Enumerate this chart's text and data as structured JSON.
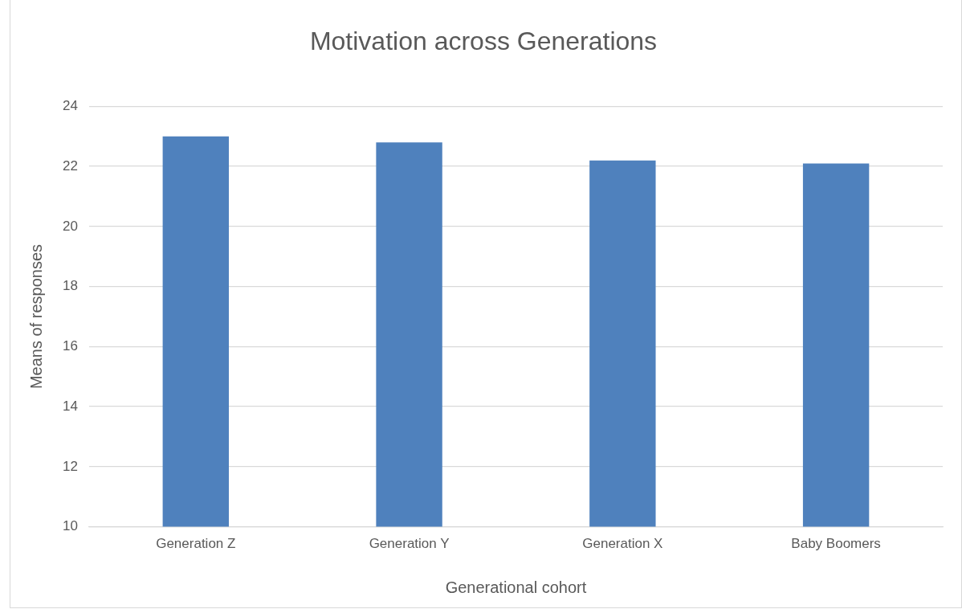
{
  "chart_data": {
    "type": "bar",
    "title": "Motivation across Generations",
    "xlabel": "Generational cohort",
    "ylabel": "Means of responses",
    "categories": [
      "Generation Z",
      "Generation Y",
      "Generation X",
      "Baby Boomers"
    ],
    "values": [
      23.0,
      22.8,
      22.2,
      22.1
    ],
    "color": "#4f81bd",
    "ylim": [
      10,
      24
    ],
    "yticks": [
      10,
      12,
      14,
      16,
      18,
      20,
      22,
      24
    ],
    "grid": "y",
    "legend": false
  }
}
